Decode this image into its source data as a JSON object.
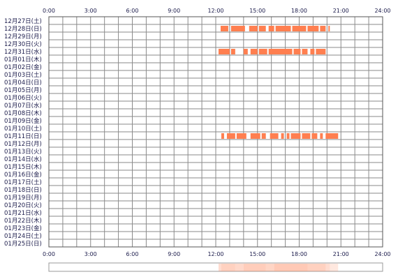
{
  "chart_data": {
    "type": "heatmap",
    "title": "",
    "xlabel": "",
    "ylabel": "",
    "x_ticks": [
      "0:00",
      "3:00",
      "6:00",
      "9:00",
      "12:00",
      "15:00",
      "18:00",
      "21:00",
      "24:00"
    ],
    "xlim": [
      0,
      24
    ],
    "grid": true,
    "bar_color": "#ff7f50",
    "rows": [
      "12月27日(土)",
      "12月28日(日)",
      "12月29日(月)",
      "12月30日(火)",
      "12月31日(水)",
      "01月01日(木)",
      "01月02日(金)",
      "01月03日(土)",
      "01月04日(日)",
      "01月05日(月)",
      "01月06日(火)",
      "01月07日(水)",
      "01月08日(木)",
      "01月09日(金)",
      "01月10日(土)",
      "01月11日(日)",
      "01月12日(月)",
      "01月13日(火)",
      "01月14日(水)",
      "01月15日(木)",
      "01月16日(金)",
      "01月17日(土)",
      "01月18日(日)",
      "01月19日(月)",
      "01月20日(火)",
      "01月21日(水)",
      "01月22日(木)",
      "01月23日(金)",
      "01月24日(土)",
      "01月25日(日)"
    ],
    "activity": [
      {
        "row": 1,
        "segments": [
          [
            12.35,
            12.9
          ],
          [
            13.1,
            14.1
          ],
          [
            14.4,
            15.0
          ],
          [
            15.1,
            15.6
          ],
          [
            15.8,
            16.2
          ],
          [
            16.3,
            17.4
          ],
          [
            17.5,
            18.5
          ],
          [
            18.6,
            19.4
          ],
          [
            19.5,
            19.9
          ],
          [
            20.1,
            20.2
          ]
        ]
      },
      {
        "row": 4,
        "segments": [
          [
            12.2,
            13.0
          ],
          [
            13.1,
            13.4
          ],
          [
            14.0,
            14.3
          ],
          [
            14.5,
            15.0
          ],
          [
            15.1,
            15.7
          ],
          [
            15.8,
            17.5
          ],
          [
            17.6,
            18.1
          ],
          [
            18.2,
            18.6
          ],
          [
            18.8,
            19.1
          ],
          [
            19.2,
            19.9
          ]
        ]
      },
      {
        "row": 15,
        "segments": [
          [
            12.4,
            12.6
          ],
          [
            12.8,
            13.4
          ],
          [
            13.5,
            14.2
          ],
          [
            14.5,
            15.2
          ],
          [
            15.3,
            15.6
          ],
          [
            15.9,
            16.5
          ],
          [
            16.7,
            16.9
          ],
          [
            17.1,
            17.3
          ],
          [
            17.4,
            18.1
          ],
          [
            18.2,
            18.8
          ],
          [
            18.9,
            19.3
          ],
          [
            19.5,
            19.7
          ],
          [
            19.9,
            20.8
          ]
        ]
      }
    ],
    "summary_intensity": [
      [
        12.2,
        12.4,
        0.45
      ],
      [
        12.4,
        13.4,
        0.6
      ],
      [
        13.4,
        14.0,
        0.5
      ],
      [
        14.0,
        15.6,
        0.65
      ],
      [
        15.6,
        16.2,
        0.55
      ],
      [
        16.2,
        18.6,
        0.7
      ],
      [
        18.6,
        19.9,
        0.6
      ],
      [
        19.9,
        20.2,
        0.45
      ],
      [
        20.2,
        20.8,
        0.3
      ]
    ]
  }
}
